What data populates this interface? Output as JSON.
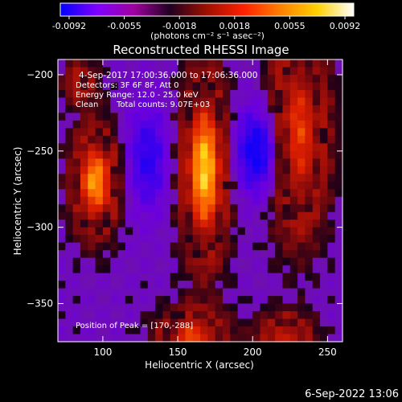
{
  "colorbar": {
    "ticks": [
      "-0.0092",
      "-0.0055",
      "-0.0018",
      "0.0018",
      "0.0055",
      "0.0092"
    ],
    "units": "(photons cm⁻² s⁻¹ asec⁻²)",
    "stops": [
      "#0000ff",
      "#7f00ff",
      "#a000a0",
      "#200020",
      "#a01000",
      "#ff2000",
      "#ff8000",
      "#ffd000",
      "#ffffff"
    ]
  },
  "chart_data": {
    "type": "heatmap",
    "title": "Reconstructed RHESSI Image",
    "xlabel": "Heliocentric X (arcsec)",
    "ylabel": "Heliocentric Y (arcsec)",
    "xlim": [
      70,
      260
    ],
    "ylim": [
      -375,
      -190
    ],
    "xticks": [
      100,
      150,
      200,
      250
    ],
    "yticks": [
      -200,
      -250,
      -300,
      -350
    ],
    "xtick_labels": [
      "100",
      "150",
      "200",
      "250"
    ],
    "ytick_labels": [
      "−200",
      "−250",
      "−300",
      "−350"
    ],
    "peak": [
      170,
      -288
    ],
    "sources": [
      {
        "x": 95,
        "y": -270,
        "sx": 10,
        "sy": 22,
        "amp": 0.9
      },
      {
        "x": 168,
        "y": -262,
        "sx": 10,
        "sy": 38,
        "amp": 1.0
      },
      {
        "x": 230,
        "y": -240,
        "sx": 13,
        "sy": 42,
        "amp": 0.75
      },
      {
        "x": 160,
        "y": -372,
        "sx": 15,
        "sy": 12,
        "amp": 0.7
      },
      {
        "x": 222,
        "y": -372,
        "sx": 12,
        "sy": 10,
        "amp": 0.6
      },
      {
        "x": 85,
        "y": -205,
        "sx": 8,
        "sy": 10,
        "amp": 0.35
      },
      {
        "x": 205,
        "y": -250,
        "sx": 12,
        "sy": 20,
        "amp": -0.55
      },
      {
        "x": 130,
        "y": -255,
        "sx": 10,
        "sy": 24,
        "amp": -0.35
      }
    ],
    "annotations": {
      "time": "4-Sep-2017 17:00:36.000 to 17:06:36.000",
      "detectors": "Detectors: 3F 6F 8F, Att 0",
      "energy": "Energy Range: 12.0 - 25.0 keV",
      "method": "Clean",
      "counts": "Total counts: 9.07E+03",
      "peak_label": "Position of Peak = [170,-288]"
    }
  },
  "footer": {
    "date": "6-Sep-2022 13:06"
  }
}
